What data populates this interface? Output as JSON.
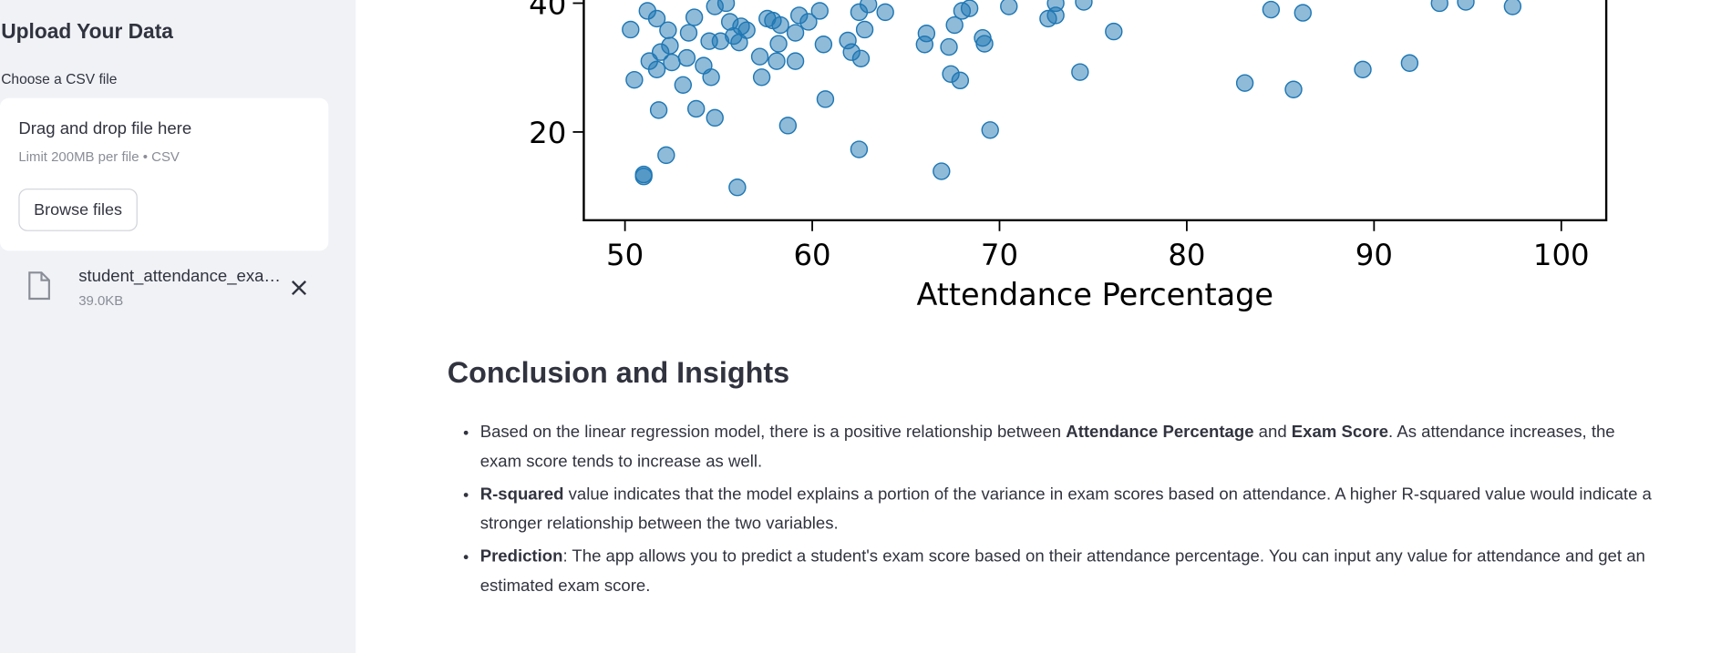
{
  "sidebar": {
    "title": "Upload Your Data",
    "uploader_label": "Choose a CSV file",
    "dropzone_title": "Drag and drop file here",
    "dropzone_hint": "Limit 200MB per file • CSV",
    "browse_button": "Browse files",
    "file_name": "student_attendance_exa…",
    "file_size": "39.0KB"
  },
  "chart_data": {
    "type": "scatter",
    "xlabel": "Attendance Percentage",
    "color": "#1f77b4",
    "x": [
      50.3,
      50.5,
      51.0,
      51.0,
      51.2,
      51.3,
      51.7,
      51.7,
      51.8,
      51.9,
      52.2,
      52.3,
      52.4,
      52.5,
      53.1,
      53.3,
      53.4,
      53.7,
      53.8,
      54.2,
      54.5,
      54.6,
      54.8,
      54.8,
      55.1,
      55.4,
      55.6,
      55.8,
      56.0,
      56.1,
      56.2,
      56.5,
      57.2,
      57.3,
      57.6,
      57.9,
      58.1,
      58.2,
      58.3,
      58.7,
      59.1,
      59.1,
      59.3,
      59.8,
      60.4,
      60.6,
      60.7,
      61.9,
      62.1,
      62.5,
      62.5,
      62.6,
      62.8,
      63.0,
      63.9,
      66.0,
      66.1,
      66.9,
      67.3,
      67.4,
      67.6,
      67.9,
      68.0,
      68.4,
      69.1,
      69.2,
      69.5,
      70.5,
      72.6,
      73.0,
      73.0,
      74.3,
      74.5,
      76.1,
      83.1,
      84.5,
      85.7,
      86.2,
      89.4,
      91.9,
      93.5,
      94.9,
      97.4
    ],
    "values": [
      35.9,
      28.1,
      13.4,
      13.1,
      38.8,
      31.0,
      37.6,
      29.7,
      23.4,
      32.4,
      16.4,
      35.8,
      33.4,
      30.8,
      27.3,
      31.5,
      35.4,
      37.8,
      23.6,
      30.3,
      34.1,
      28.5,
      22.2,
      39.5,
      34.1,
      40.0,
      37.1,
      34.9,
      11.4,
      33.9,
      36.4,
      35.8,
      31.7,
      28.5,
      37.6,
      37.3,
      31.0,
      33.7,
      36.6,
      21.0,
      31.0,
      35.4,
      38.1,
      37.1,
      38.8,
      33.6,
      25.1,
      34.2,
      32.4,
      38.6,
      17.3,
      31.4,
      35.9,
      39.8,
      38.6,
      33.6,
      35.3,
      13.9,
      33.2,
      29.0,
      36.6,
      28.0,
      38.8,
      39.2,
      34.6,
      33.7,
      20.3,
      39.5,
      37.6,
      38.1,
      40.0,
      29.3,
      40.2,
      35.6,
      27.6,
      39.0,
      26.6,
      38.5,
      29.7,
      30.7,
      40.0,
      40.2,
      39.5
    ],
    "xlim": [
      47.8,
      102.4
    ],
    "ylim": [
      6.3,
      41
    ],
    "xticks": [
      50,
      60,
      70,
      80,
      90,
      100
    ],
    "yticks": [
      20,
      40
    ]
  },
  "conclusion": {
    "heading": "Conclusion and Insights",
    "bullets": [
      [
        "Based on the linear regression model, there is a positive relationship between ",
        "Attendance Percentage",
        " and ",
        "Exam Score",
        ". As attendance increases, the exam score tends to increase as well."
      ],
      [
        "R-squared",
        " value indicates that the model explains a portion of the variance in exam scores based on attendance. A higher R-squared value would indicate a stronger relationship between the two variables."
      ],
      [
        "Prediction",
        ": The app allows you to predict a student's exam score based on their attendance percentage. You can input any value for attendance and get an estimated exam score."
      ]
    ]
  }
}
